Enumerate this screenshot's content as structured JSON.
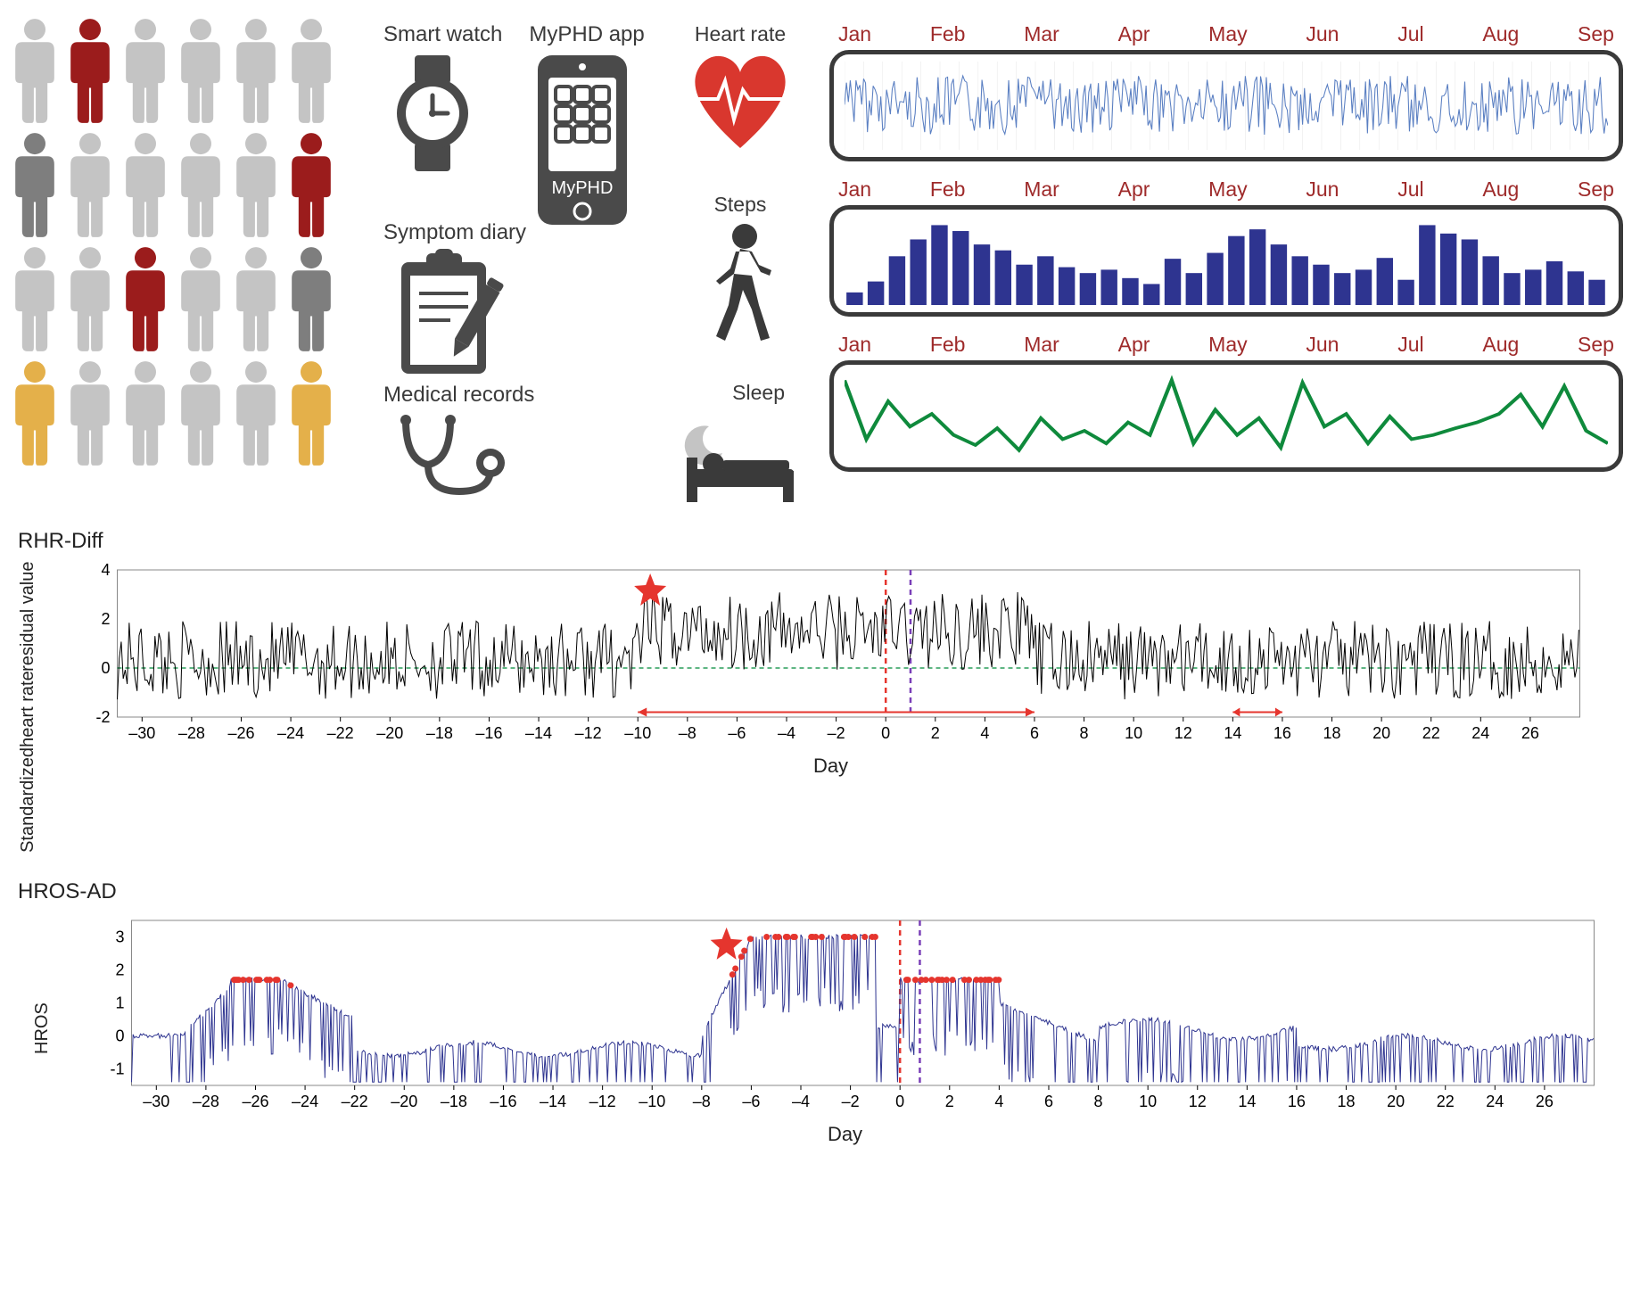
{
  "people": {
    "rows": [
      [
        "#c4c4c4",
        "#9b1c1c",
        "#c4c4c4",
        "#c4c4c4",
        "#c4c4c4",
        "#c4c4c4"
      ],
      [
        "#7e7e7e",
        "#c4c4c4",
        "#c4c4c4",
        "#c4c4c4",
        "#c4c4c4",
        "#9b1c1c"
      ],
      [
        "#c4c4c4",
        "#c4c4c4",
        "#9b1c1c",
        "#c4c4c4",
        "#c4c4c4",
        "#7e7e7e"
      ],
      [
        "#e4b04a",
        "#c4c4c4",
        "#c4c4c4",
        "#c4c4c4",
        "#c4c4c4",
        "#e4b04a"
      ]
    ]
  },
  "devices": {
    "watch": "Smart watch",
    "app": "MyPHD app",
    "app_badge": "MyPHD",
    "diary": "Symptom diary",
    "records": "Medical records"
  },
  "metrics": {
    "hr": "Heart rate",
    "steps": "Steps",
    "sleep": "Sleep"
  },
  "months": [
    "Jan",
    "Feb",
    "Mar",
    "Apr",
    "May",
    "Jun",
    "Jul",
    "Aug",
    "Sep"
  ],
  "hr_chart": {
    "color_main": "#5a7fc2",
    "color_alt": "#d98a3a",
    "bg": "#ffffff"
  },
  "steps_chart": {
    "bar_color": "#2e3490",
    "values": [
      15,
      28,
      58,
      78,
      95,
      88,
      72,
      65,
      48,
      58,
      45,
      38,
      42,
      32,
      25,
      55,
      38,
      62,
      82,
      90,
      72,
      58,
      48,
      38,
      42,
      56,
      30,
      95,
      85,
      78,
      58,
      38,
      42,
      52,
      40,
      30
    ]
  },
  "sleep_chart": {
    "line_color": "#0f8a3c",
    "values": [
      95,
      25,
      70,
      40,
      55,
      30,
      18,
      38,
      12,
      50,
      25,
      35,
      20,
      45,
      30,
      95,
      20,
      60,
      30,
      50,
      15,
      92,
      40,
      55,
      20,
      52,
      25,
      30,
      38,
      45,
      55,
      78,
      40,
      88,
      35,
      20
    ]
  },
  "rhr_diff": {
    "title": "RHR-Diff",
    "ylabel": "Standardized\nheart rate\nresidual value",
    "xlabel": "Day",
    "ylim": [
      -2,
      4
    ],
    "yticks": [
      -2,
      0,
      2,
      4
    ],
    "xticks": [
      -30,
      -28,
      -26,
      -24,
      -22,
      -20,
      -18,
      -16,
      -14,
      -12,
      -10,
      -8,
      -6,
      -4,
      -2,
      0,
      2,
      4,
      6,
      8,
      10,
      12,
      14,
      16,
      18,
      20,
      22,
      24,
      26
    ],
    "line_color": "#000000",
    "zero_line": "#2a9d5a",
    "star_color": "#e5352e",
    "vline1_color": "#e5352e",
    "vline2_color": "#7a3fb8",
    "arrow_color": "#e5352e",
    "arrow1_start": -10,
    "arrow1_end": 6,
    "arrow2_start": 14,
    "arrow2_end": 16,
    "star_x": -9.5,
    "star_y": 3.2,
    "vline1_x": 0,
    "vline2_x": 1
  },
  "hros_ad": {
    "title": "HROS-AD",
    "ylabel": "HROS",
    "xlabel": "Day",
    "ylim": [
      -1.5,
      3.5
    ],
    "yticks": [
      -1,
      0,
      1,
      2,
      3
    ],
    "xticks": [
      -30,
      -28,
      -26,
      -24,
      -22,
      -20,
      -18,
      -16,
      -14,
      -12,
      -10,
      -8,
      -6,
      -4,
      -2,
      0,
      2,
      4,
      6,
      8,
      10,
      12,
      14,
      16,
      18,
      20,
      22,
      24,
      26
    ],
    "line_color": "#2e3490",
    "dot_color": "#e5352e",
    "star_color": "#e5352e",
    "star_x": -7,
    "star_y": 2.8,
    "vline1_x": 0,
    "vline2_x": 0.8,
    "vline1_color": "#e5352e",
    "vline2_color": "#7a3fb8"
  }
}
